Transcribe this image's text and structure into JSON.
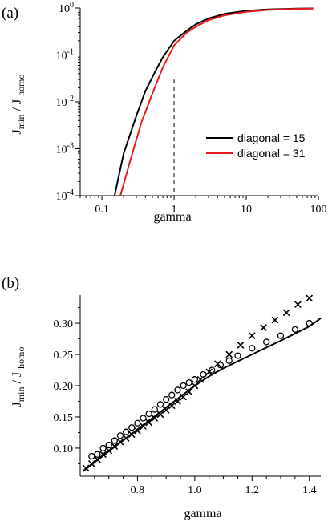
{
  "colors": {
    "black": "#000000",
    "red": "#e41a1c"
  },
  "chart_data": [
    {
      "panel_label": "(a)",
      "type": "line",
      "xscale": "log",
      "yscale": "log",
      "xlim": [
        0.05,
        100
      ],
      "ylim": [
        0.0001,
        1
      ],
      "xlabel": "gamma",
      "ylabel": {
        "main": "J",
        "sub1": "min",
        "mid": " / J ",
        "sub2": "homo"
      },
      "x_ticks": [
        {
          "value": 0.1,
          "label": "0.1"
        },
        {
          "value": 1,
          "label": "1"
        },
        {
          "value": 10,
          "label": "10"
        },
        {
          "value": 100,
          "label": "100"
        }
      ],
      "y_ticks": [
        {
          "value": 0.0001,
          "base": "10",
          "exp": "-4"
        },
        {
          "value": 0.001,
          "base": "10",
          "exp": "-3"
        },
        {
          "value": 0.01,
          "base": "10",
          "exp": "-2"
        },
        {
          "value": 0.1,
          "base": "10",
          "exp": "-1"
        },
        {
          "value": 1,
          "base": "10",
          "exp": "0"
        }
      ],
      "vline": {
        "x": 1,
        "y_top": 0.03,
        "style": "dashed"
      },
      "legend_position": "lower-right",
      "series": [
        {
          "name": "diagonal = 15",
          "color": "#000000",
          "x": [
            0.15,
            0.2,
            0.3,
            0.4,
            0.55,
            0.7,
            1.0,
            1.5,
            2,
            3,
            5,
            10,
            20,
            50,
            85
          ],
          "y": [
            0.0001,
            0.0008,
            0.005,
            0.017,
            0.045,
            0.09,
            0.2,
            0.33,
            0.45,
            0.6,
            0.75,
            0.87,
            0.93,
            0.97,
            0.98
          ]
        },
        {
          "name": "diagonal = 31",
          "color": "#e41a1c",
          "x": [
            0.18,
            0.25,
            0.35,
            0.5,
            0.7,
            1.0,
            1.5,
            2,
            3,
            5,
            10,
            20,
            50,
            85
          ],
          "y": [
            0.0001,
            0.0006,
            0.0035,
            0.015,
            0.055,
            0.16,
            0.3,
            0.4,
            0.55,
            0.7,
            0.83,
            0.91,
            0.96,
            0.97
          ]
        }
      ]
    },
    {
      "panel_label": "(b)",
      "type": "scatter",
      "xlim": [
        0.6,
        1.44
      ],
      "ylim": [
        0.055,
        0.345
      ],
      "xlabel": "gamma",
      "ylabel": {
        "main": "J",
        "sub1": "min",
        "mid": " / J ",
        "sub2": "homo"
      },
      "x_ticks": [
        {
          "value": 0.8,
          "label": "0.8"
        },
        {
          "value": 1.0,
          "label": "1.0"
        },
        {
          "value": 1.2,
          "label": "1.2"
        },
        {
          "value": 1.4,
          "label": "1.4"
        }
      ],
      "y_ticks": [
        {
          "value": 0.1,
          "label": "0.10"
        },
        {
          "value": 0.15,
          "label": "0.15"
        },
        {
          "value": 0.2,
          "label": "0.20"
        },
        {
          "value": 0.25,
          "label": "0.25"
        },
        {
          "value": 0.3,
          "label": "0.30"
        }
      ],
      "fit_line": {
        "x": [
          0.61,
          0.7,
          0.8,
          0.9,
          1.0,
          1.05,
          1.1,
          1.2,
          1.3,
          1.4,
          1.44
        ],
        "y": [
          0.063,
          0.095,
          0.13,
          0.165,
          0.2,
          0.215,
          0.228,
          0.25,
          0.272,
          0.295,
          0.308
        ]
      },
      "series": [
        {
          "marker": "circle",
          "x": [
            0.64,
            0.66,
            0.68,
            0.7,
            0.72,
            0.74,
            0.76,
            0.78,
            0.8,
            0.82,
            0.84,
            0.86,
            0.88,
            0.9,
            0.92,
            0.94,
            0.96,
            0.98,
            1.0,
            1.03,
            1.06,
            1.09,
            1.12,
            1.15,
            1.2,
            1.25,
            1.3,
            1.35,
            1.4
          ],
          "y": [
            0.087,
            0.09,
            0.1,
            0.105,
            0.112,
            0.12,
            0.126,
            0.133,
            0.14,
            0.148,
            0.155,
            0.162,
            0.17,
            0.178,
            0.185,
            0.193,
            0.2,
            0.205,
            0.21,
            0.218,
            0.225,
            0.233,
            0.24,
            0.248,
            0.26,
            0.27,
            0.28,
            0.29,
            0.3
          ]
        },
        {
          "marker": "cross",
          "x": [
            0.62,
            0.64,
            0.66,
            0.68,
            0.7,
            0.72,
            0.74,
            0.76,
            0.78,
            0.8,
            0.82,
            0.84,
            0.86,
            0.88,
            0.9,
            0.92,
            0.94,
            0.96,
            0.98,
            1.0,
            1.02,
            1.05,
            1.08,
            1.12,
            1.16,
            1.2,
            1.24,
            1.28,
            1.32,
            1.36,
            1.4
          ],
          "y": [
            0.068,
            0.075,
            0.082,
            0.09,
            0.096,
            0.103,
            0.11,
            0.116,
            0.122,
            0.128,
            0.135,
            0.141,
            0.148,
            0.154,
            0.161,
            0.168,
            0.175,
            0.182,
            0.19,
            0.2,
            0.21,
            0.222,
            0.235,
            0.25,
            0.265,
            0.28,
            0.293,
            0.305,
            0.317,
            0.33,
            0.34
          ]
        }
      ]
    }
  ]
}
